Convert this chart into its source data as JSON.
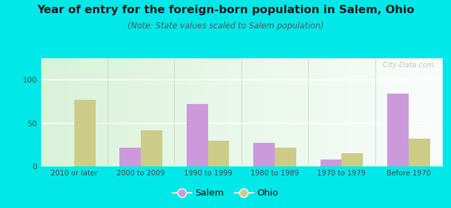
{
  "title": "Year of entry for the foreign-born population in Salem, Ohio",
  "subtitle": "(Note: State values scaled to Salem population)",
  "categories": [
    "2010 or later",
    "2000 to 2009",
    "1990 to 1999",
    "1980 to 1989",
    "1970 to 1979",
    "Before 1970"
  ],
  "salem_values": [
    0,
    22,
    72,
    27,
    8,
    84
  ],
  "ohio_values": [
    77,
    42,
    30,
    22,
    15,
    32
  ],
  "salem_color": "#cc99dd",
  "ohio_color": "#cccc88",
  "background_color": "#00e8e8",
  "ylim": [
    0,
    125
  ],
  "yticks": [
    0,
    50,
    100
  ],
  "bar_width": 0.32,
  "title_fontsize": 11.5,
  "subtitle_fontsize": 8.5,
  "legend_labels": [
    "Salem",
    "Ohio"
  ],
  "watermark": "  City-Data.com"
}
